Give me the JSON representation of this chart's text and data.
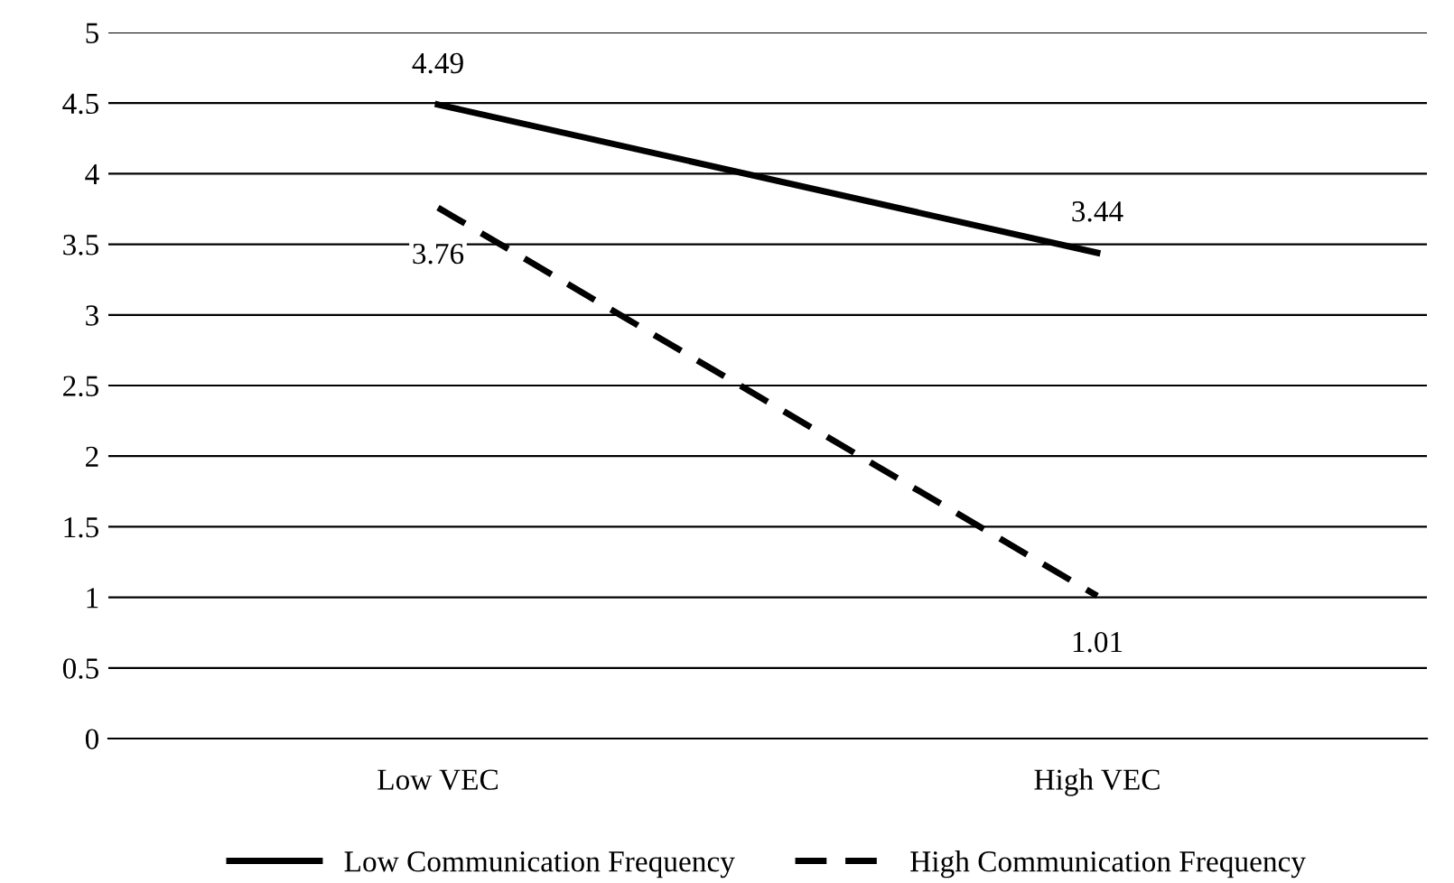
{
  "chart_data": {
    "type": "line",
    "categories": [
      "Low VEC",
      "High VEC"
    ],
    "series": [
      {
        "name": "Low Communication Frequency",
        "color": "#000000",
        "values": [
          4.49,
          3.44
        ],
        "line_style": "solid"
      },
      {
        "name": "High Communication Frequency",
        "color": "#000000",
        "values": [
          3.76,
          1.01
        ],
        "line_style": "dashed"
      }
    ],
    "ylim": [
      0,
      5
    ],
    "yticks": [
      0,
      0.5,
      1,
      1.5,
      2,
      2.5,
      3,
      3.5,
      4,
      4.5,
      5
    ],
    "grid": "y",
    "legend": "bottom",
    "data_labels": true,
    "marker": "none"
  }
}
